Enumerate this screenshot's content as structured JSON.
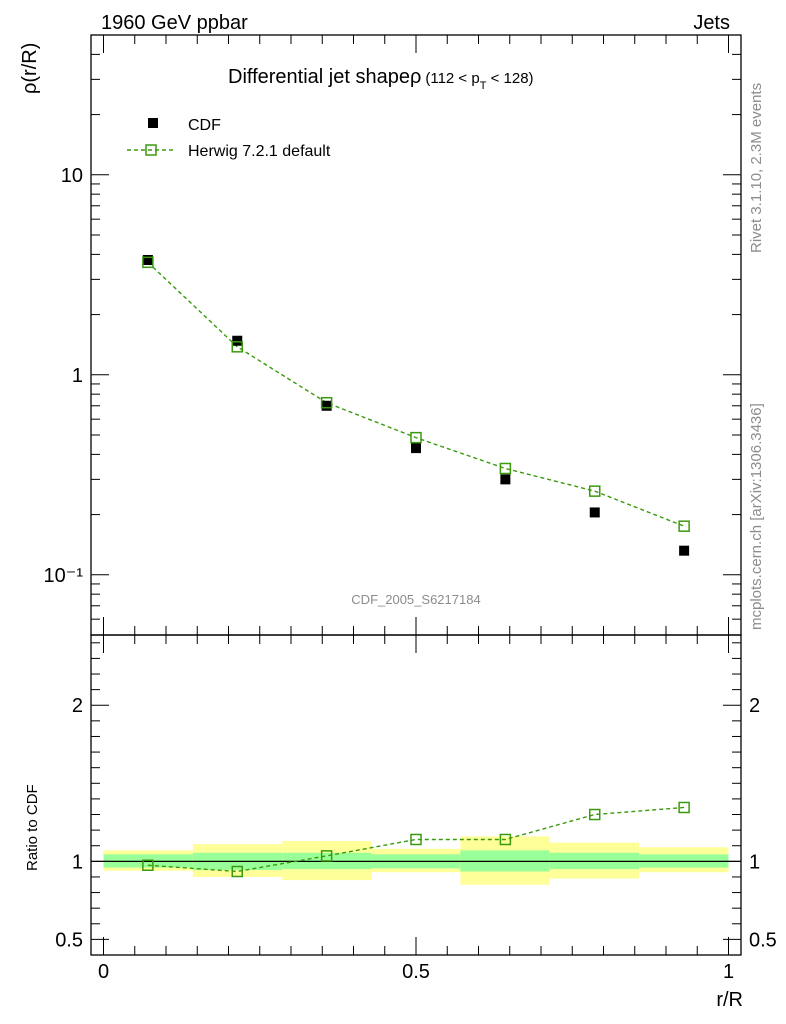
{
  "header": {
    "left": "1960 GeV ppbar",
    "right": "Jets"
  },
  "side_text": {
    "rivet": "Rivet 3.1.10,  2.3M events",
    "mcplots": "mcplots.cern.ch [arXiv:1306.3436]"
  },
  "plot_title": {
    "main": "Differential jet shapeρ",
    "sub_prefix": "(112 < p",
    "sub_index": "T",
    "sub_suffix": " < 128)"
  },
  "analysis_tag": "CDF_2005_S6217184",
  "colors": {
    "herwig": "#3a9a0e",
    "cdf": "#000000",
    "band_outer": "#ffff99",
    "band_inner": "#99ff99"
  },
  "chart_data": [
    {
      "type": "scatter",
      "panel": "main",
      "ylabel": "ρ(r/R)",
      "yscale": "log",
      "ylim": [
        0.05,
        50
      ],
      "xlim": [
        -0.02,
        1.02
      ],
      "ytick_labels": [
        "10⁻¹",
        "1",
        "10"
      ],
      "legend_position": "top-left",
      "series": [
        {
          "name": "CDF",
          "marker": "filled-square",
          "x": [
            0.071,
            0.214,
            0.357,
            0.5,
            0.643,
            0.786,
            0.929
          ],
          "y": [
            3.75,
            1.48,
            0.7,
            0.43,
            0.3,
            0.205,
            0.132
          ]
        },
        {
          "name": "Herwig 7.2.1 default",
          "marker": "open-square",
          "line": "dashed",
          "x": [
            0.071,
            0.214,
            0.357,
            0.5,
            0.643,
            0.786,
            0.929
          ],
          "y": [
            3.65,
            1.38,
            0.725,
            0.485,
            0.34,
            0.262,
            0.175
          ]
        }
      ]
    },
    {
      "type": "line",
      "panel": "ratio",
      "xlabel": "r/R",
      "ylabel": "Ratio to CDF",
      "ylim": [
        0.4,
        2.45
      ],
      "xlim": [
        -0.02,
        1.02
      ],
      "xtick_labels": [
        "0",
        "0.5",
        "1"
      ],
      "ytick_labels": [
        "0.5",
        "1",
        "2"
      ],
      "uncertainty_bands": {
        "edges": [
          0,
          0.143,
          0.286,
          0.429,
          0.571,
          0.714,
          0.857,
          1.0
        ],
        "outer_lo": [
          0.94,
          0.9,
          0.88,
          0.93,
          0.85,
          0.89,
          0.93
        ],
        "outer_hi": [
          1.07,
          1.11,
          1.13,
          1.08,
          1.16,
          1.12,
          1.09
        ],
        "inner_lo": [
          0.96,
          0.945,
          0.95,
          0.955,
          0.935,
          0.95,
          0.96
        ],
        "inner_hi": [
          1.045,
          1.055,
          1.055,
          1.045,
          1.07,
          1.055,
          1.045
        ]
      },
      "series": [
        {
          "name": "Herwig 7.2.1 default",
          "marker": "open-square",
          "line": "dashed",
          "x": [
            0.071,
            0.214,
            0.357,
            0.5,
            0.643,
            0.786,
            0.929
          ],
          "y": [
            0.975,
            0.935,
            1.035,
            1.14,
            1.14,
            1.3,
            1.345
          ]
        }
      ]
    }
  ]
}
